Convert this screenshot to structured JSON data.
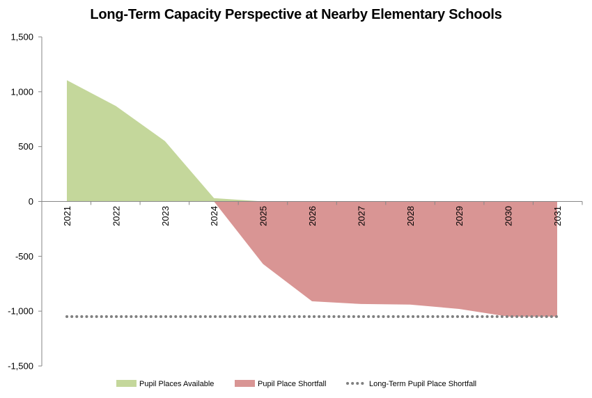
{
  "chart_data": {
    "type": "area",
    "title": "Long-Term Capacity Perspective at Nearby Elementary Schools",
    "xlabel": "",
    "ylabel": "",
    "x": [
      "2021",
      "2022",
      "2023",
      "2024",
      "2025",
      "2026",
      "2027",
      "2028",
      "2029",
      "2030",
      "2031"
    ],
    "ylim": [
      -1500,
      1500
    ],
    "yticks": [
      1500,
      1000,
      500,
      0,
      -500,
      -1000,
      -1500
    ],
    "ytick_labels": [
      "1,500",
      "1,000",
      "500",
      "0",
      "-500",
      "-1,000",
      "-1,500"
    ],
    "grid": false,
    "legend_position": "bottom",
    "series": [
      {
        "name": "Pupil Places Available",
        "kind": "area",
        "color": "#c4d79b",
        "values": [
          1105,
          870,
          550,
          30,
          0,
          0,
          0,
          0,
          0,
          0,
          0
        ]
      },
      {
        "name": "Pupil Place Shortfall",
        "kind": "area",
        "color": "#d99594",
        "values": [
          0,
          0,
          0,
          0,
          -570,
          -910,
          -935,
          -940,
          -980,
          -1050,
          -1050
        ]
      },
      {
        "name": "Long-Term Pupil Place Shortfall",
        "kind": "dotted-line",
        "color": "#808080",
        "values": [
          -1050,
          -1050,
          -1050,
          -1050,
          -1050,
          -1050,
          -1050,
          -1050,
          -1050,
          -1050,
          -1050
        ]
      }
    ]
  }
}
